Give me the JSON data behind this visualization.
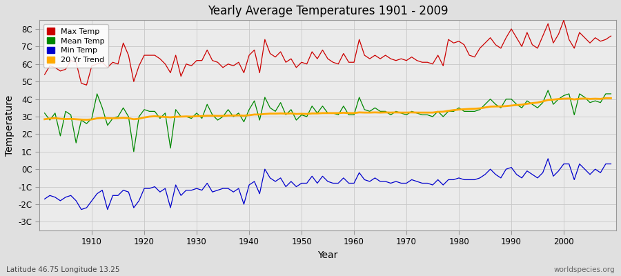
{
  "title": "Yearly Average Temperatures 1901 - 2009",
  "xlabel": "Year",
  "ylabel": "Temperature",
  "subtitle_left": "Latitude 46.75 Longitude 13.25",
  "subtitle_right": "worldspecies.org",
  "year_start": 1901,
  "year_end": 2009,
  "ylim": [
    -3.5,
    8.5
  ],
  "yticks": [
    -3,
    -2,
    -1,
    0,
    1,
    2,
    3,
    4,
    5,
    6,
    7,
    8
  ],
  "ytick_labels": [
    "-3C",
    "-2C",
    "-1C",
    "0C",
    "1C",
    "2C",
    "3C",
    "4C",
    "5C",
    "6C",
    "7C",
    "8C"
  ],
  "xticks": [
    1910,
    1920,
    1930,
    1940,
    1950,
    1960,
    1970,
    1980,
    1990,
    2000
  ],
  "colors": {
    "max_temp": "#cc0000",
    "mean_temp": "#008800",
    "min_temp": "#0000cc",
    "trend": "#ffaa00",
    "background": "#e0e0e0",
    "plot_bg": "#ebebeb",
    "grid": "#c8c8c8"
  },
  "legend_labels": [
    "Max Temp",
    "Mean Temp",
    "Min Temp",
    "20 Yr Trend"
  ],
  "max_temp": [
    5.4,
    5.9,
    5.8,
    5.6,
    5.7,
    6.2,
    6.1,
    4.9,
    4.8,
    5.9,
    6.0,
    6.1,
    5.8,
    6.1,
    6.0,
    7.2,
    6.5,
    5.0,
    5.9,
    6.5,
    6.5,
    6.5,
    6.3,
    6.0,
    5.5,
    6.5,
    5.3,
    6.0,
    5.9,
    6.2,
    6.2,
    6.8,
    6.2,
    6.1,
    5.8,
    6.0,
    5.9,
    6.1,
    5.5,
    6.5,
    6.8,
    5.5,
    7.4,
    6.6,
    6.4,
    6.7,
    6.1,
    6.3,
    5.8,
    6.1,
    6.0,
    6.7,
    6.3,
    6.8,
    6.3,
    6.1,
    6.0,
    6.6,
    6.1,
    6.1,
    7.4,
    6.5,
    6.3,
    6.5,
    6.3,
    6.5,
    6.3,
    6.2,
    6.3,
    6.2,
    6.4,
    6.2,
    6.1,
    6.1,
    6.0,
    6.5,
    5.9,
    7.4,
    7.2,
    7.3,
    7.1,
    6.5,
    6.4,
    6.9,
    7.2,
    7.5,
    7.1,
    6.9,
    7.5,
    8.0,
    7.5,
    7.0,
    7.8,
    7.1,
    6.9,
    7.6,
    8.3,
    7.2,
    7.7,
    8.5,
    7.4,
    6.9,
    7.8,
    7.5,
    7.2,
    7.5,
    7.3,
    7.4,
    7.6
  ],
  "mean_temp": [
    3.2,
    2.8,
    3.2,
    1.9,
    3.3,
    3.1,
    1.5,
    2.8,
    2.6,
    2.9,
    4.3,
    3.5,
    2.5,
    2.9,
    3.0,
    3.5,
    3.0,
    1.0,
    3.0,
    3.4,
    3.3,
    3.3,
    2.9,
    3.2,
    1.2,
    3.4,
    3.0,
    3.0,
    2.9,
    3.2,
    2.9,
    3.7,
    3.1,
    2.8,
    3.0,
    3.4,
    3.0,
    3.2,
    2.7,
    3.4,
    3.9,
    2.8,
    4.1,
    3.5,
    3.3,
    3.8,
    3.1,
    3.4,
    2.8,
    3.1,
    3.0,
    3.6,
    3.2,
    3.6,
    3.2,
    3.2,
    3.1,
    3.6,
    3.1,
    3.1,
    4.1,
    3.4,
    3.3,
    3.5,
    3.3,
    3.3,
    3.1,
    3.3,
    3.2,
    3.1,
    3.3,
    3.2,
    3.1,
    3.1,
    3.0,
    3.3,
    3.0,
    3.3,
    3.3,
    3.5,
    3.3,
    3.3,
    3.3,
    3.4,
    3.7,
    4.0,
    3.7,
    3.5,
    4.0,
    4.0,
    3.7,
    3.5,
    3.9,
    3.7,
    3.5,
    3.8,
    4.5,
    3.7,
    4.0,
    4.2,
    4.3,
    3.1,
    4.3,
    4.1,
    3.8,
    3.9,
    3.8,
    4.3,
    4.3
  ],
  "min_temp": [
    -1.7,
    -1.5,
    -1.6,
    -1.8,
    -1.6,
    -1.5,
    -1.8,
    -2.3,
    -2.2,
    -1.8,
    -1.4,
    -1.2,
    -2.3,
    -1.5,
    -1.5,
    -1.2,
    -1.3,
    -2.2,
    -1.8,
    -1.1,
    -1.1,
    -1.0,
    -1.3,
    -1.1,
    -2.2,
    -0.9,
    -1.5,
    -1.2,
    -1.2,
    -1.1,
    -1.2,
    -0.8,
    -1.3,
    -1.2,
    -1.1,
    -1.1,
    -1.3,
    -1.1,
    -2.0,
    -0.9,
    -0.7,
    -1.4,
    0.0,
    -0.5,
    -0.7,
    -0.5,
    -1.0,
    -0.7,
    -1.0,
    -0.8,
    -0.8,
    -0.4,
    -0.8,
    -0.4,
    -0.7,
    -0.8,
    -0.8,
    -0.5,
    -0.8,
    -0.8,
    -0.2,
    -0.6,
    -0.7,
    -0.5,
    -0.7,
    -0.7,
    -0.8,
    -0.7,
    -0.8,
    -0.8,
    -0.6,
    -0.7,
    -0.8,
    -0.8,
    -0.9,
    -0.6,
    -0.9,
    -0.6,
    -0.6,
    -0.5,
    -0.6,
    -0.6,
    -0.6,
    -0.5,
    -0.3,
    0.0,
    -0.3,
    -0.5,
    0.0,
    0.1,
    -0.3,
    -0.5,
    -0.1,
    -0.3,
    -0.5,
    -0.2,
    0.6,
    -0.4,
    -0.1,
    0.3,
    0.3,
    -0.6,
    0.3,
    0.0,
    -0.3,
    0.0,
    -0.2,
    0.3,
    0.3
  ],
  "trend": [
    2.85,
    2.89,
    2.91,
    2.88,
    2.86,
    2.87,
    2.85,
    2.83,
    2.82,
    2.84,
    2.9,
    2.92,
    2.91,
    2.9,
    2.91,
    2.93,
    2.91,
    2.85,
    2.88,
    2.95,
    3.0,
    3.02,
    3.0,
    2.98,
    2.96,
    2.99,
    3.0,
    3.01,
    3.0,
    3.02,
    3.03,
    3.05,
    3.05,
    3.04,
    3.04,
    3.06,
    3.06,
    3.07,
    3.05,
    3.08,
    3.12,
    3.12,
    3.15,
    3.17,
    3.17,
    3.18,
    3.17,
    3.18,
    3.15,
    3.16,
    3.15,
    3.18,
    3.18,
    3.2,
    3.2,
    3.2,
    3.2,
    3.22,
    3.2,
    3.2,
    3.24,
    3.23,
    3.23,
    3.24,
    3.23,
    3.24,
    3.23,
    3.24,
    3.23,
    3.23,
    3.24,
    3.23,
    3.23,
    3.23,
    3.23,
    3.27,
    3.28,
    3.33,
    3.37,
    3.4,
    3.42,
    3.44,
    3.45,
    3.47,
    3.52,
    3.57,
    3.58,
    3.58,
    3.6,
    3.63,
    3.66,
    3.68,
    3.73,
    3.77,
    3.8,
    3.87,
    3.95,
    3.97,
    4.0,
    4.02,
    4.03,
    3.98,
    4.02,
    4.03,
    4.01,
    4.02,
    4.01,
    4.05,
    4.05
  ]
}
